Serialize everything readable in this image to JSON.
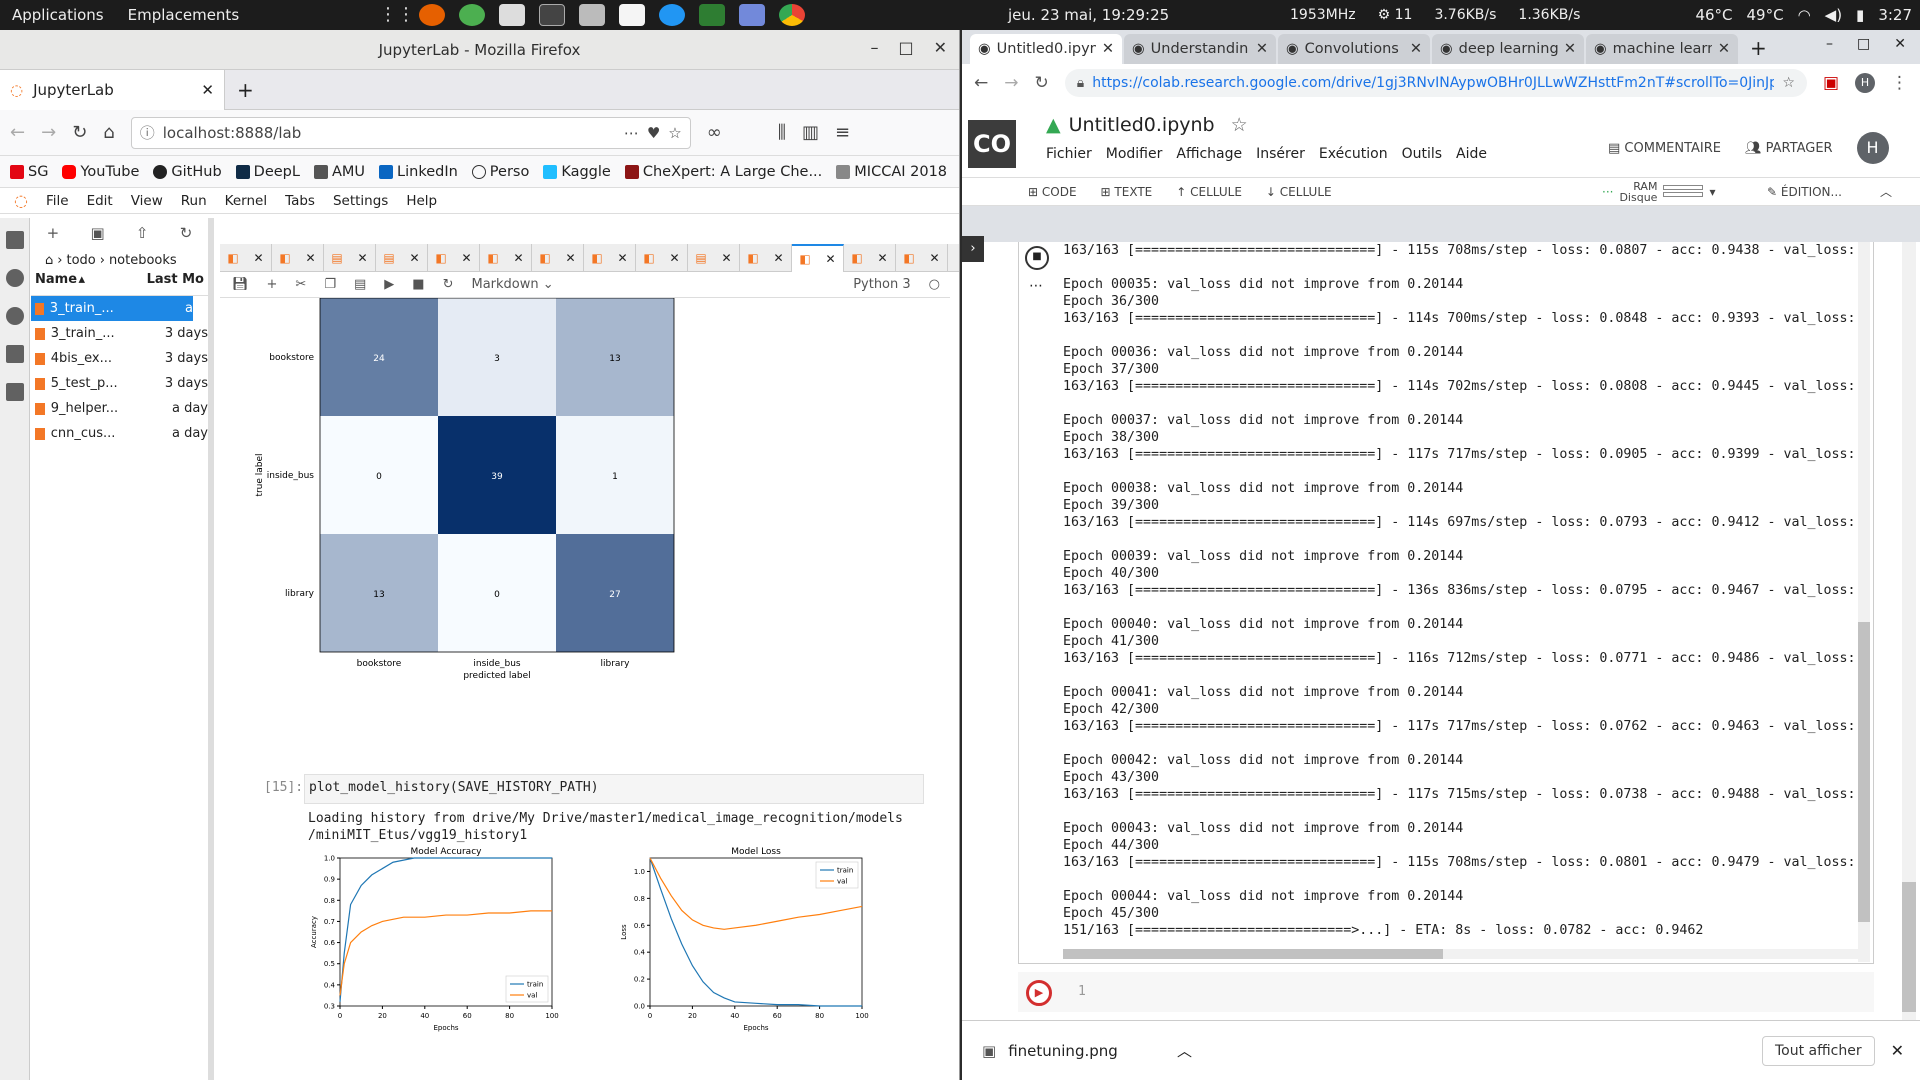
{
  "topbar": {
    "applications": "Applications",
    "places": "Emplacements",
    "clock": "jeu. 23 mai, 19:29:25",
    "cpu_freq": "1953MHz",
    "count": "11",
    "down_speed": "3.76KB/s",
    "up_speed": "1.36KB/s",
    "temp1": "46°C",
    "temp2": "49°C",
    "time": "3:27"
  },
  "firefox": {
    "window_title": "JupyterLab - Mozilla Firefox",
    "tab_title": "JupyterLab",
    "url": "localhost:8888/lab",
    "bookmarks": [
      "SG",
      "YouTube",
      "GitHub",
      "DeepL",
      "AMU",
      "LinkedIn",
      "Perso",
      "Kaggle",
      "CheXpert: A Large Che...",
      "MICCAI 2018"
    ]
  },
  "jupyter": {
    "menu": [
      "File",
      "Edit",
      "View",
      "Run",
      "Kernel",
      "Tabs",
      "Settings",
      "Help"
    ],
    "breadcrumb_1": "todo",
    "breadcrumb_2": "notebooks",
    "col_name": "Name",
    "col_modified": "Last Mo",
    "files": [
      {
        "name": "3_train_...",
        "date": "a"
      },
      {
        "name": "3_train_...",
        "date": "3 days"
      },
      {
        "name": "4bis_ex...",
        "date": "3 days"
      },
      {
        "name": "5_test_p...",
        "date": "3 days"
      },
      {
        "name": "9_helper...",
        "date": "a day"
      },
      {
        "name": "cnn_cus...",
        "date": "a day"
      }
    ],
    "cell_type": "Markdown",
    "kernel": "Python 3",
    "cell_prompt": "[15]:",
    "cell_code": "plot_model_history(SAVE_HISTORY_PATH)",
    "output_line1": "Loading history from drive/My Drive/master1/medical_image_recognition/models",
    "output_line2": "/miniMIT_Etus/vgg19_history1"
  },
  "chart_data": [
    {
      "type": "heatmap",
      "xlabel": "predicted label",
      "ylabel": "true label",
      "x_categories": [
        "bookstore",
        "inside_bus",
        "library"
      ],
      "y_categories": [
        "bookstore",
        "inside_bus",
        "library"
      ],
      "values": [
        [
          24,
          3,
          13
        ],
        [
          0,
          39,
          1
        ],
        [
          13,
          0,
          27
        ]
      ],
      "colormap": "Blues"
    },
    {
      "type": "line",
      "title": "Model Accuracy",
      "xlabel": "Epochs",
      "ylabel": "Accuracy",
      "xlim": [
        0,
        100
      ],
      "ylim": [
        0.3,
        1.0
      ],
      "xticks": [
        0,
        20,
        40,
        60,
        80,
        100
      ],
      "yticks": [
        0.3,
        0.4,
        0.5,
        0.6,
        0.7,
        0.8,
        0.9,
        1.0
      ],
      "legend": "lower-right",
      "x": [
        0,
        2,
        5,
        10,
        15,
        20,
        25,
        30,
        35,
        40,
        50,
        60,
        70,
        80,
        90,
        100
      ],
      "series": [
        {
          "name": "train",
          "color": "#1f77b4",
          "values": [
            0.32,
            0.55,
            0.78,
            0.87,
            0.92,
            0.95,
            0.98,
            0.99,
            1.0,
            1.0,
            1.0,
            1.0,
            1.0,
            1.0,
            1.0,
            1.0
          ]
        },
        {
          "name": "val",
          "color": "#ff7f0e",
          "values": [
            0.35,
            0.5,
            0.6,
            0.65,
            0.68,
            0.7,
            0.71,
            0.72,
            0.72,
            0.72,
            0.73,
            0.73,
            0.74,
            0.74,
            0.75,
            0.75
          ]
        }
      ]
    },
    {
      "type": "line",
      "title": "Model Loss",
      "xlabel": "Epochs",
      "ylabel": "Loss",
      "xlim": [
        0,
        100
      ],
      "ylim": [
        0.0,
        1.1
      ],
      "xticks": [
        0,
        20,
        40,
        60,
        80,
        100
      ],
      "yticks": [
        0.0,
        0.2,
        0.4,
        0.6,
        0.8,
        1.0
      ],
      "legend": "top-right",
      "x": [
        0,
        5,
        10,
        15,
        20,
        25,
        30,
        35,
        40,
        50,
        60,
        70,
        80,
        90,
        100
      ],
      "series": [
        {
          "name": "train",
          "color": "#1f77b4",
          "values": [
            1.1,
            0.87,
            0.65,
            0.46,
            0.3,
            0.18,
            0.1,
            0.06,
            0.03,
            0.02,
            0.01,
            0.01,
            0.0,
            0.0,
            0.0
          ]
        },
        {
          "name": "val",
          "color": "#ff7f0e",
          "values": [
            1.1,
            0.95,
            0.82,
            0.71,
            0.64,
            0.6,
            0.58,
            0.57,
            0.58,
            0.6,
            0.63,
            0.66,
            0.68,
            0.71,
            0.74
          ]
        }
      ]
    }
  ],
  "chrome": {
    "tabs": [
      "Untitled0.ipyn",
      "Understandin",
      "Convolutions",
      "deep learning",
      "machine learn"
    ],
    "url": "https://colab.research.google.com/drive/1gj3RNvINAypwOBHr0JLLwWZHsttFm2nT#scrollTo=0JinJp7..."
  },
  "colab": {
    "notebook_name": "Untitled0.ipynb",
    "menu": [
      "Fichier",
      "Modifier",
      "Affichage",
      "Insérer",
      "Exécution",
      "Outils",
      "Aide"
    ],
    "comment": "COMMENTAIRE",
    "share": "PARTAGER",
    "avatar": "H",
    "tb_code": "CODE",
    "tb_text": "TEXTE",
    "tb_cell_up": "CELLULE",
    "tb_cell_down": "CELLULE",
    "ram": "RAM",
    "disk": "Disque",
    "edit": "ÉDITION...",
    "output": [
      "163/163 [==============================] - 115s 708ms/step - loss: 0.0807 - acc: 0.9438 - val_loss:",
      "",
      "Epoch 00035: val_loss did not improve from 0.20144",
      "Epoch 36/300",
      "163/163 [==============================] - 114s 700ms/step - loss: 0.0848 - acc: 0.9393 - val_loss:",
      "",
      "Epoch 00036: val_loss did not improve from 0.20144",
      "Epoch 37/300",
      "163/163 [==============================] - 114s 702ms/step - loss: 0.0808 - acc: 0.9445 - val_loss:",
      "",
      "Epoch 00037: val_loss did not improve from 0.20144",
      "Epoch 38/300",
      "163/163 [==============================] - 117s 717ms/step - loss: 0.0905 - acc: 0.9399 - val_loss:",
      "",
      "Epoch 00038: val_loss did not improve from 0.20144",
      "Epoch 39/300",
      "163/163 [==============================] - 114s 697ms/step - loss: 0.0793 - acc: 0.9412 - val_loss:",
      "",
      "Epoch 00039: val_loss did not improve from 0.20144",
      "Epoch 40/300",
      "163/163 [==============================] - 136s 836ms/step - loss: 0.0795 - acc: 0.9467 - val_loss:",
      "",
      "Epoch 00040: val_loss did not improve from 0.20144",
      "Epoch 41/300",
      "163/163 [==============================] - 116s 712ms/step - loss: 0.0771 - acc: 0.9486 - val_loss:",
      "",
      "Epoch 00041: val_loss did not improve from 0.20144",
      "Epoch 42/300",
      "163/163 [==============================] - 117s 717ms/step - loss: 0.0762 - acc: 0.9463 - val_loss:",
      "",
      "Epoch 00042: val_loss did not improve from 0.20144",
      "Epoch 43/300",
      "163/163 [==============================] - 117s 715ms/step - loss: 0.0738 - acc: 0.9488 - val_loss:",
      "",
      "Epoch 00043: val_loss did not improve from 0.20144",
      "Epoch 44/300",
      "163/163 [==============================] - 115s 708ms/step - loss: 0.0801 - acc: 0.9479 - val_loss:",
      "",
      "Epoch 00044: val_loss did not improve from 0.20144",
      "Epoch 45/300",
      "151/163 [===========================>...] - ETA: 8s - loss: 0.0782 - acc: 0.9462"
    ],
    "next_cell_line": "1",
    "download_file": "finetuning.png",
    "show_all": "Tout afficher"
  }
}
